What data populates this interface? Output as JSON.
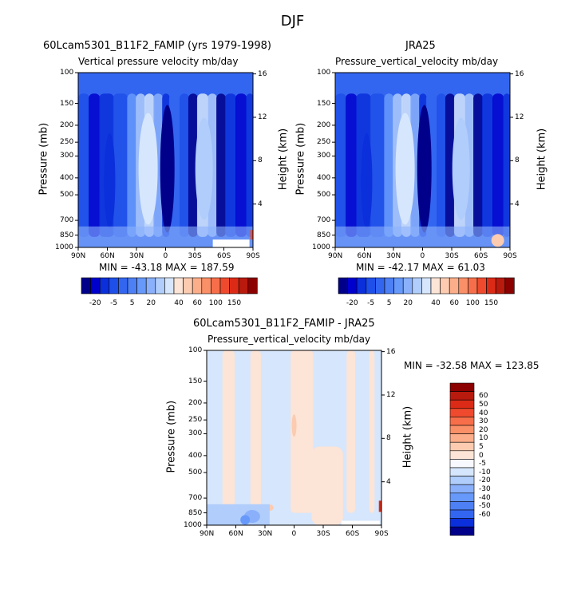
{
  "page_title": "DJF",
  "colors": {
    "neg": [
      "#00008b",
      "#0000cd",
      "#0a2fdb",
      "#1e4fe8",
      "#3366f0",
      "#4d7ff5",
      "#6699fa",
      "#8ab0fb",
      "#b0cdfb",
      "#d6e6fc"
    ],
    "pos": [
      "#fce4d6",
      "#fccbb0",
      "#fcae8a",
      "#fa9068",
      "#f76f4a",
      "#ef4a2d",
      "#db2b17",
      "#b81a0e",
      "#8b0000"
    ]
  },
  "colorbar_top": {
    "labels": [
      "-20",
      "-5",
      "5",
      "20",
      "40",
      "60",
      "100",
      "150"
    ]
  },
  "colorbar_diff": {
    "labels": [
      "60",
      "50",
      "40",
      "30",
      "20",
      "10",
      "5",
      "0",
      "-5",
      "-10",
      "-20",
      "-30",
      "-40",
      "-50",
      "-60"
    ]
  },
  "chart_data": [
    {
      "type": "heatmap",
      "title": "60Lcam5301_B11F2_FAMIP (yrs 1979-1998)",
      "subtitle": "Vertical pressure velocity   mb/day",
      "ylabel": "Pressure (mb)",
      "ylabel_right": "Height (km)",
      "x_ticks": [
        "90N",
        "60N",
        "30N",
        "0",
        "30S",
        "60S",
        "90S"
      ],
      "y_ticks": [
        "100",
        "150",
        "200",
        "250",
        "300",
        "400",
        "500",
        "700",
        "850",
        "1000"
      ],
      "y_right_ticks": [
        "16",
        "12",
        "8",
        "4"
      ],
      "stats": "MIN = -43.18   MAX = 187.59",
      "min": -43.18,
      "max": 187.59
    },
    {
      "type": "heatmap",
      "title": "JRA25",
      "subtitle": "Pressure_vertical_velocity   mb/day",
      "ylabel": "Pressure (mb)",
      "ylabel_right": "Height (km)",
      "x_ticks": [
        "90N",
        "60N",
        "30N",
        "0",
        "30S",
        "60S",
        "90S"
      ],
      "y_ticks": [
        "100",
        "150",
        "200",
        "250",
        "300",
        "400",
        "500",
        "700",
        "850",
        "1000"
      ],
      "y_right_ticks": [
        "16",
        "12",
        "8",
        "4"
      ],
      "stats": "MIN = -42.17   MAX =  61.03",
      "min": -42.17,
      "max": 61.03
    },
    {
      "type": "heatmap",
      "title": "60Lcam5301_B11F2_FAMIP - JRA25",
      "subtitle": "Pressure_vertical_velocity   mb/day",
      "ylabel": "Pressure (mb)",
      "ylabel_right": "Height (km)",
      "x_ticks": [
        "90N",
        "60N",
        "30N",
        "0",
        "30S",
        "60S",
        "90S"
      ],
      "y_ticks": [
        "100",
        "150",
        "200",
        "250",
        "300",
        "400",
        "500",
        "700",
        "850",
        "1000"
      ],
      "y_right_ticks": [
        "16",
        "12",
        "8",
        "4"
      ],
      "stats": "MIN = -32.58   MAX = 123.85",
      "min": -32.58,
      "max": 123.85
    }
  ]
}
